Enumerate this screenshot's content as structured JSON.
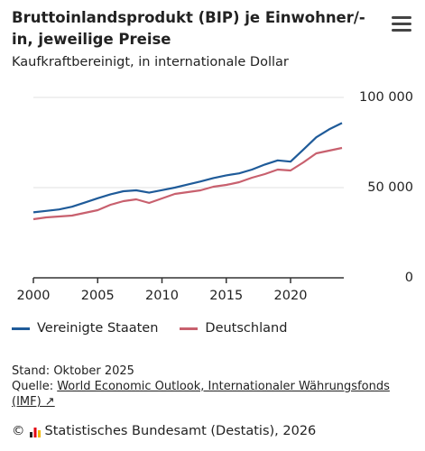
{
  "chart_data": {
    "type": "line",
    "title": "Bruttoinlandsprodukt (BIP) je Einwohner/-in, jeweilige Preise",
    "subtitle": "Kaufkraftbereinigt, in internationale Dollar",
    "x": [
      2000,
      2001,
      2002,
      2003,
      2004,
      2005,
      2006,
      2007,
      2008,
      2009,
      2010,
      2011,
      2012,
      2013,
      2014,
      2015,
      2016,
      2017,
      2018,
      2019,
      2020,
      2021,
      2022,
      2023,
      2024
    ],
    "series": [
      {
        "name": "Vereinigte Staaten",
        "color": "#1f5b99",
        "values": [
          36300,
          37100,
          37900,
          39400,
          41700,
          44100,
          46300,
          48000,
          48500,
          47200,
          48600,
          50000,
          51700,
          53400,
          55300,
          56800,
          57900,
          60000,
          62800,
          65100,
          64400,
          71100,
          77900,
          82300,
          85800
        ]
      },
      {
        "name": "Deutschland",
        "color": "#c8606e",
        "values": [
          32500,
          33500,
          34000,
          34500,
          36000,
          37500,
          40500,
          42500,
          43500,
          41500,
          44000,
          46500,
          47500,
          48500,
          50500,
          51500,
          53000,
          55500,
          57500,
          60000,
          59500,
          64000,
          69000,
          70500,
          72000
        ]
      }
    ],
    "xlim": [
      2000,
      2024
    ],
    "xticks": [
      2000,
      2005,
      2010,
      2015,
      2020
    ],
    "ylim": [
      0,
      100000
    ],
    "yticks": [
      0,
      {
        "value": 50000,
        "label": "50 000"
      },
      {
        "value": 100000,
        "label": "100 000"
      }
    ],
    "grid": true
  },
  "footer": {
    "status": "Stand: Oktober 2025",
    "source_label": "Quelle:",
    "source_link": "World Economic Outlook, Internationaler Währungsfonds (IMF) ↗",
    "copyright_symbol": "©",
    "copyright": "Statistisches Bundesamt (Destatis), 2026"
  }
}
